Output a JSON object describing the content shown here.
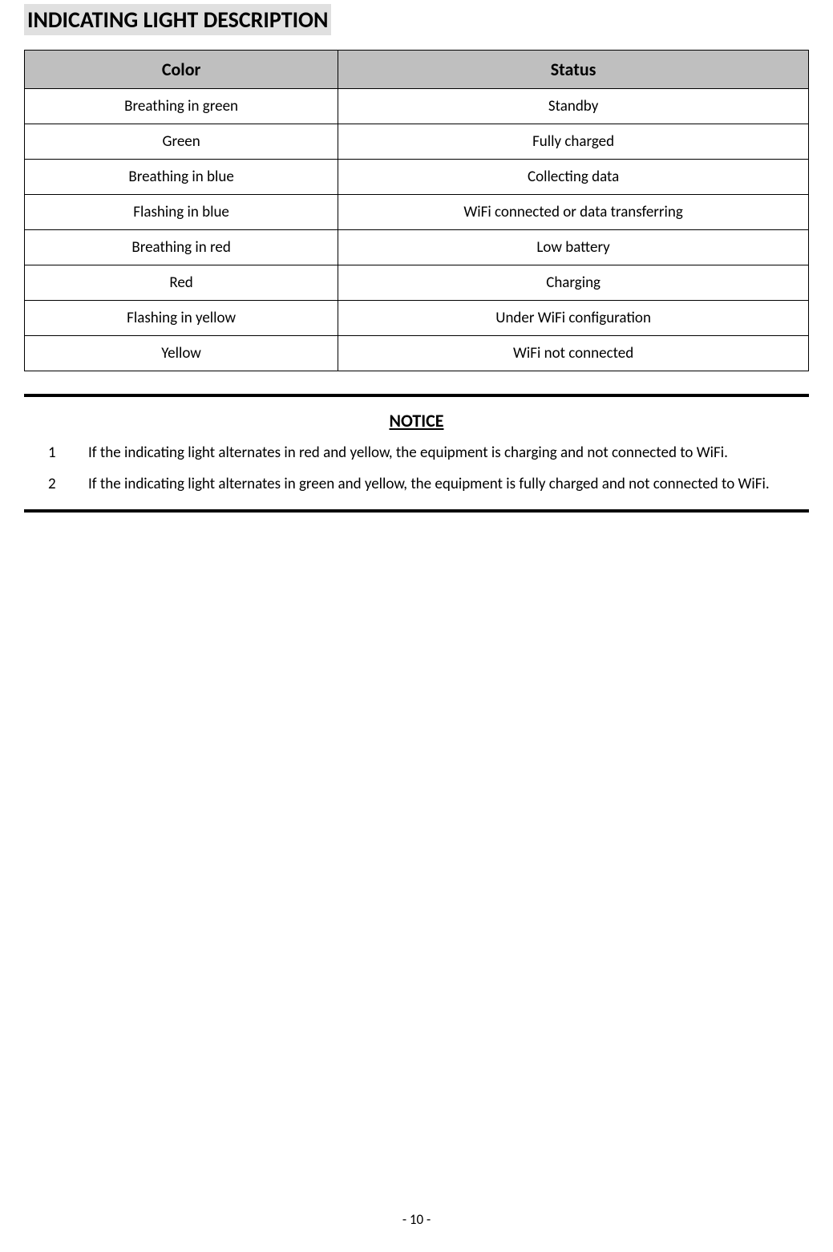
{
  "title": "INDICATING LIGHT DESCRIPTION",
  "table": {
    "headers": {
      "color": "Color",
      "status": "Status"
    },
    "rows": [
      {
        "color": "Breathing in green",
        "status": "Standby"
      },
      {
        "color": "Green",
        "status": "Fully charged"
      },
      {
        "color": "Breathing in blue",
        "status": "Collecting data"
      },
      {
        "color": "Flashing in blue",
        "status": "WiFi connected or data transferring"
      },
      {
        "color": "Breathing in red",
        "status": "Low battery"
      },
      {
        "color": "Red",
        "status": "Charging"
      },
      {
        "color": "Flashing in yellow",
        "status": "Under WiFi configuration"
      },
      {
        "color": "Yellow",
        "status": "WiFi not connected"
      }
    ]
  },
  "notice": {
    "title": "NOTICE",
    "items": [
      {
        "num": "1",
        "text": "If the indicating light alternates in red and yellow, the equipment is charging and  not connected to WiFi."
      },
      {
        "num": "2",
        "text": "If the indicating light alternates in green and yellow, the equipment is fully charged and not connected to WiFi."
      }
    ]
  },
  "pageNumber": "- 10 -",
  "colors": {
    "headerBg": "#bfbfbf",
    "titleBg": "#e0e0e0",
    "border": "#000000",
    "text": "#000000",
    "background": "#ffffff"
  },
  "fonts": {
    "titleSize": 28,
    "headerSize": 22,
    "cellSize": 19,
    "noticeTitleSize": 22,
    "noticeTextSize": 19,
    "pageNumSize": 17
  }
}
